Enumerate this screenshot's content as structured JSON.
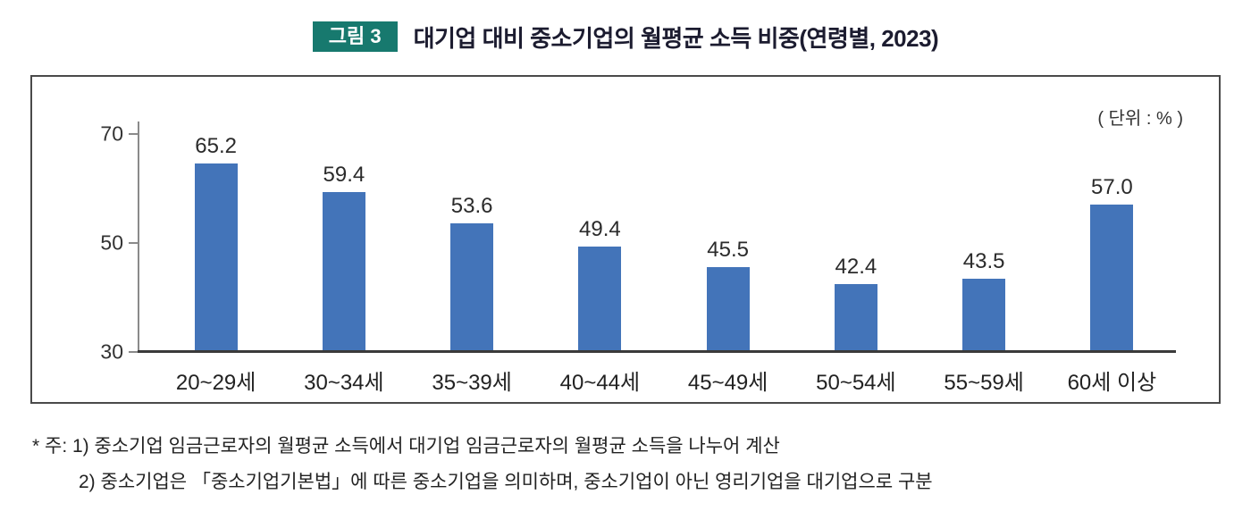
{
  "header": {
    "badge": "그림 3",
    "title": "대기업 대비 중소기업의 월평균 소득 비중(연령별, 2023)"
  },
  "chart": {
    "unit_label": "( 단위 : % )"
  },
  "chart_data": {
    "type": "bar",
    "title": "대기업 대비 중소기업의 월평균 소득 비중(연령별, 2023)",
    "categories": [
      "20~29세",
      "30~34세",
      "35~39세",
      "40~44세",
      "45~49세",
      "50~54세",
      "55~59세",
      "60세 이상"
    ],
    "values": [
      65.2,
      59.4,
      53.6,
      49.4,
      45.5,
      42.4,
      43.5,
      57.0
    ],
    "xlabel": "",
    "ylabel": "",
    "unit": "%",
    "ylim": [
      30,
      70
    ],
    "yticks": [
      70,
      50,
      30
    ],
    "bar_color": "#4374b9",
    "grid": false,
    "legend": "none"
  },
  "footnotes": [
    "* 주: 1) 중소기업 임금근로자의 월평균 소득에서 대기업 임금근로자의 월평균 소득을 나누어 계산",
    "2) 중소기업은 「중소기업기본법」에 따른 중소기업을 의미하며, 중소기업이 아닌 영리기업을 대기업으로 구분"
  ]
}
